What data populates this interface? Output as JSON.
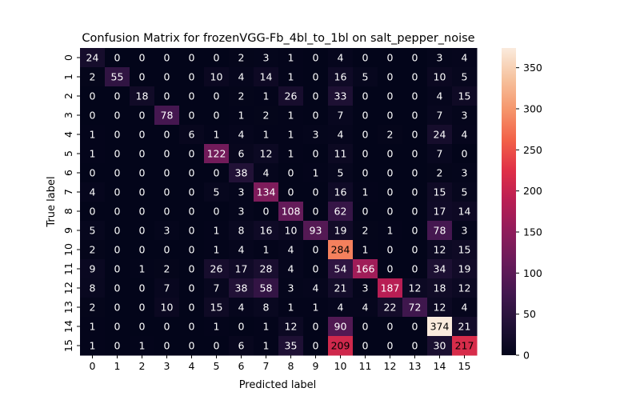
{
  "chart_data": {
    "type": "heatmap",
    "title": "Confusion Matrix for frozenVGG-Fb_4bl_to_1bl on salt_pepper_noise",
    "xlabel": "Predicted label",
    "ylabel": "True label",
    "x_categories": [
      "0",
      "1",
      "2",
      "3",
      "4",
      "5",
      "6",
      "7",
      "8",
      "9",
      "10",
      "11",
      "12",
      "13",
      "14",
      "15"
    ],
    "y_categories": [
      "0",
      "1",
      "2",
      "3",
      "4",
      "5",
      "6",
      "7",
      "8",
      "9",
      "10",
      "11",
      "12",
      "13",
      "14",
      "15"
    ],
    "values": [
      [
        24,
        0,
        0,
        0,
        0,
        0,
        2,
        3,
        1,
        0,
        4,
        0,
        0,
        0,
        3,
        4
      ],
      [
        2,
        55,
        0,
        0,
        0,
        10,
        4,
        14,
        1,
        0,
        16,
        5,
        0,
        0,
        10,
        5
      ],
      [
        0,
        0,
        18,
        0,
        0,
        0,
        2,
        1,
        26,
        0,
        33,
        0,
        0,
        0,
        4,
        15
      ],
      [
        0,
        0,
        0,
        78,
        0,
        0,
        1,
        2,
        1,
        0,
        7,
        0,
        0,
        0,
        7,
        3
      ],
      [
        1,
        0,
        0,
        0,
        6,
        1,
        4,
        1,
        1,
        3,
        4,
        0,
        2,
        0,
        24,
        4
      ],
      [
        1,
        0,
        0,
        0,
        0,
        122,
        6,
        12,
        1,
        0,
        11,
        0,
        0,
        0,
        7,
        0
      ],
      [
        0,
        0,
        0,
        0,
        0,
        0,
        38,
        4,
        0,
        1,
        5,
        0,
        0,
        0,
        2,
        3
      ],
      [
        4,
        0,
        0,
        0,
        0,
        5,
        3,
        134,
        0,
        0,
        16,
        1,
        0,
        0,
        15,
        5
      ],
      [
        0,
        0,
        0,
        0,
        0,
        0,
        3,
        0,
        108,
        0,
        62,
        0,
        0,
        0,
        17,
        14
      ],
      [
        5,
        0,
        0,
        3,
        0,
        1,
        8,
        16,
        10,
        93,
        19,
        2,
        1,
        0,
        78,
        3
      ],
      [
        2,
        0,
        0,
        0,
        0,
        1,
        4,
        1,
        4,
        0,
        284,
        1,
        0,
        0,
        12,
        15
      ],
      [
        9,
        0,
        1,
        2,
        0,
        26,
        17,
        28,
        4,
        0,
        54,
        166,
        0,
        0,
        34,
        19
      ],
      [
        8,
        0,
        0,
        7,
        0,
        7,
        38,
        58,
        3,
        4,
        21,
        3,
        187,
        12,
        18,
        12
      ],
      [
        2,
        0,
        0,
        10,
        0,
        15,
        4,
        8,
        1,
        1,
        4,
        4,
        22,
        72,
        12,
        4
      ],
      [
        1,
        0,
        0,
        0,
        0,
        1,
        0,
        1,
        12,
        0,
        90,
        0,
        0,
        0,
        374,
        21
      ],
      [
        1,
        0,
        1,
        0,
        0,
        0,
        6,
        1,
        35,
        0,
        209,
        0,
        0,
        0,
        30,
        217
      ]
    ],
    "colorbar": {
      "colormap": "rocket",
      "range": [
        0,
        374
      ],
      "ticks": [
        "0",
        "50",
        "100",
        "150",
        "200",
        "250",
        "300",
        "350"
      ]
    }
  }
}
